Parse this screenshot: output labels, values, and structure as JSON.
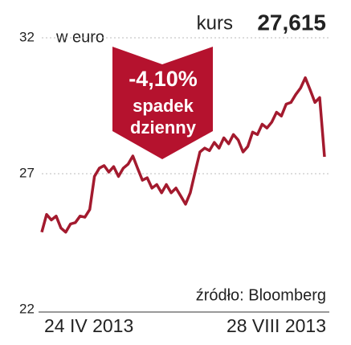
{
  "chart_data": {
    "type": "line",
    "unit_label": "w euro",
    "price_label": "kurs",
    "price_value": "27,615",
    "annotation": {
      "change": "-4,10%",
      "line1": "spadek",
      "line2": "dzienny"
    },
    "source": "źródło: Bloomberg",
    "categories": [
      "24 IV 2013",
      null,
      null,
      null,
      null,
      null,
      null,
      null,
      null,
      null,
      null,
      null,
      null,
      null,
      null,
      null,
      null,
      null,
      null,
      null,
      null,
      null,
      null,
      null,
      null,
      null,
      null,
      null,
      null,
      null,
      null,
      null,
      null,
      null,
      null,
      null,
      null,
      null,
      null,
      null,
      null,
      null,
      null,
      null,
      null,
      null,
      null,
      null,
      null,
      null,
      null,
      null,
      null,
      null,
      null,
      null,
      null,
      null,
      null,
      "28 VIII 2013"
    ],
    "series": [
      {
        "color": "#a31a2e",
        "values": [
          24.85,
          25.5,
          25.3,
          25.44,
          25.0,
          24.85,
          25.15,
          25.2,
          25.44,
          25.4,
          25.68,
          26.9,
          27.2,
          27.3,
          27.06,
          27.26,
          26.9,
          27.2,
          27.35,
          27.65,
          27.2,
          26.76,
          26.85,
          26.47,
          26.6,
          26.3,
          26.6,
          26.3,
          26.47,
          26.18,
          25.88,
          26.3,
          27.06,
          27.8,
          27.94,
          27.85,
          28.15,
          27.94,
          28.32,
          28.1,
          28.44,
          28.24,
          27.8,
          28.0,
          28.53,
          28.44,
          28.82,
          28.68,
          28.9,
          29.26,
          29.12,
          29.56,
          29.62,
          29.91,
          30.15,
          30.53,
          30.09,
          29.62,
          29.8,
          27.62
        ]
      }
    ],
    "ylim": [
      22,
      32
    ],
    "yticks": [
      22,
      27,
      32
    ]
  }
}
